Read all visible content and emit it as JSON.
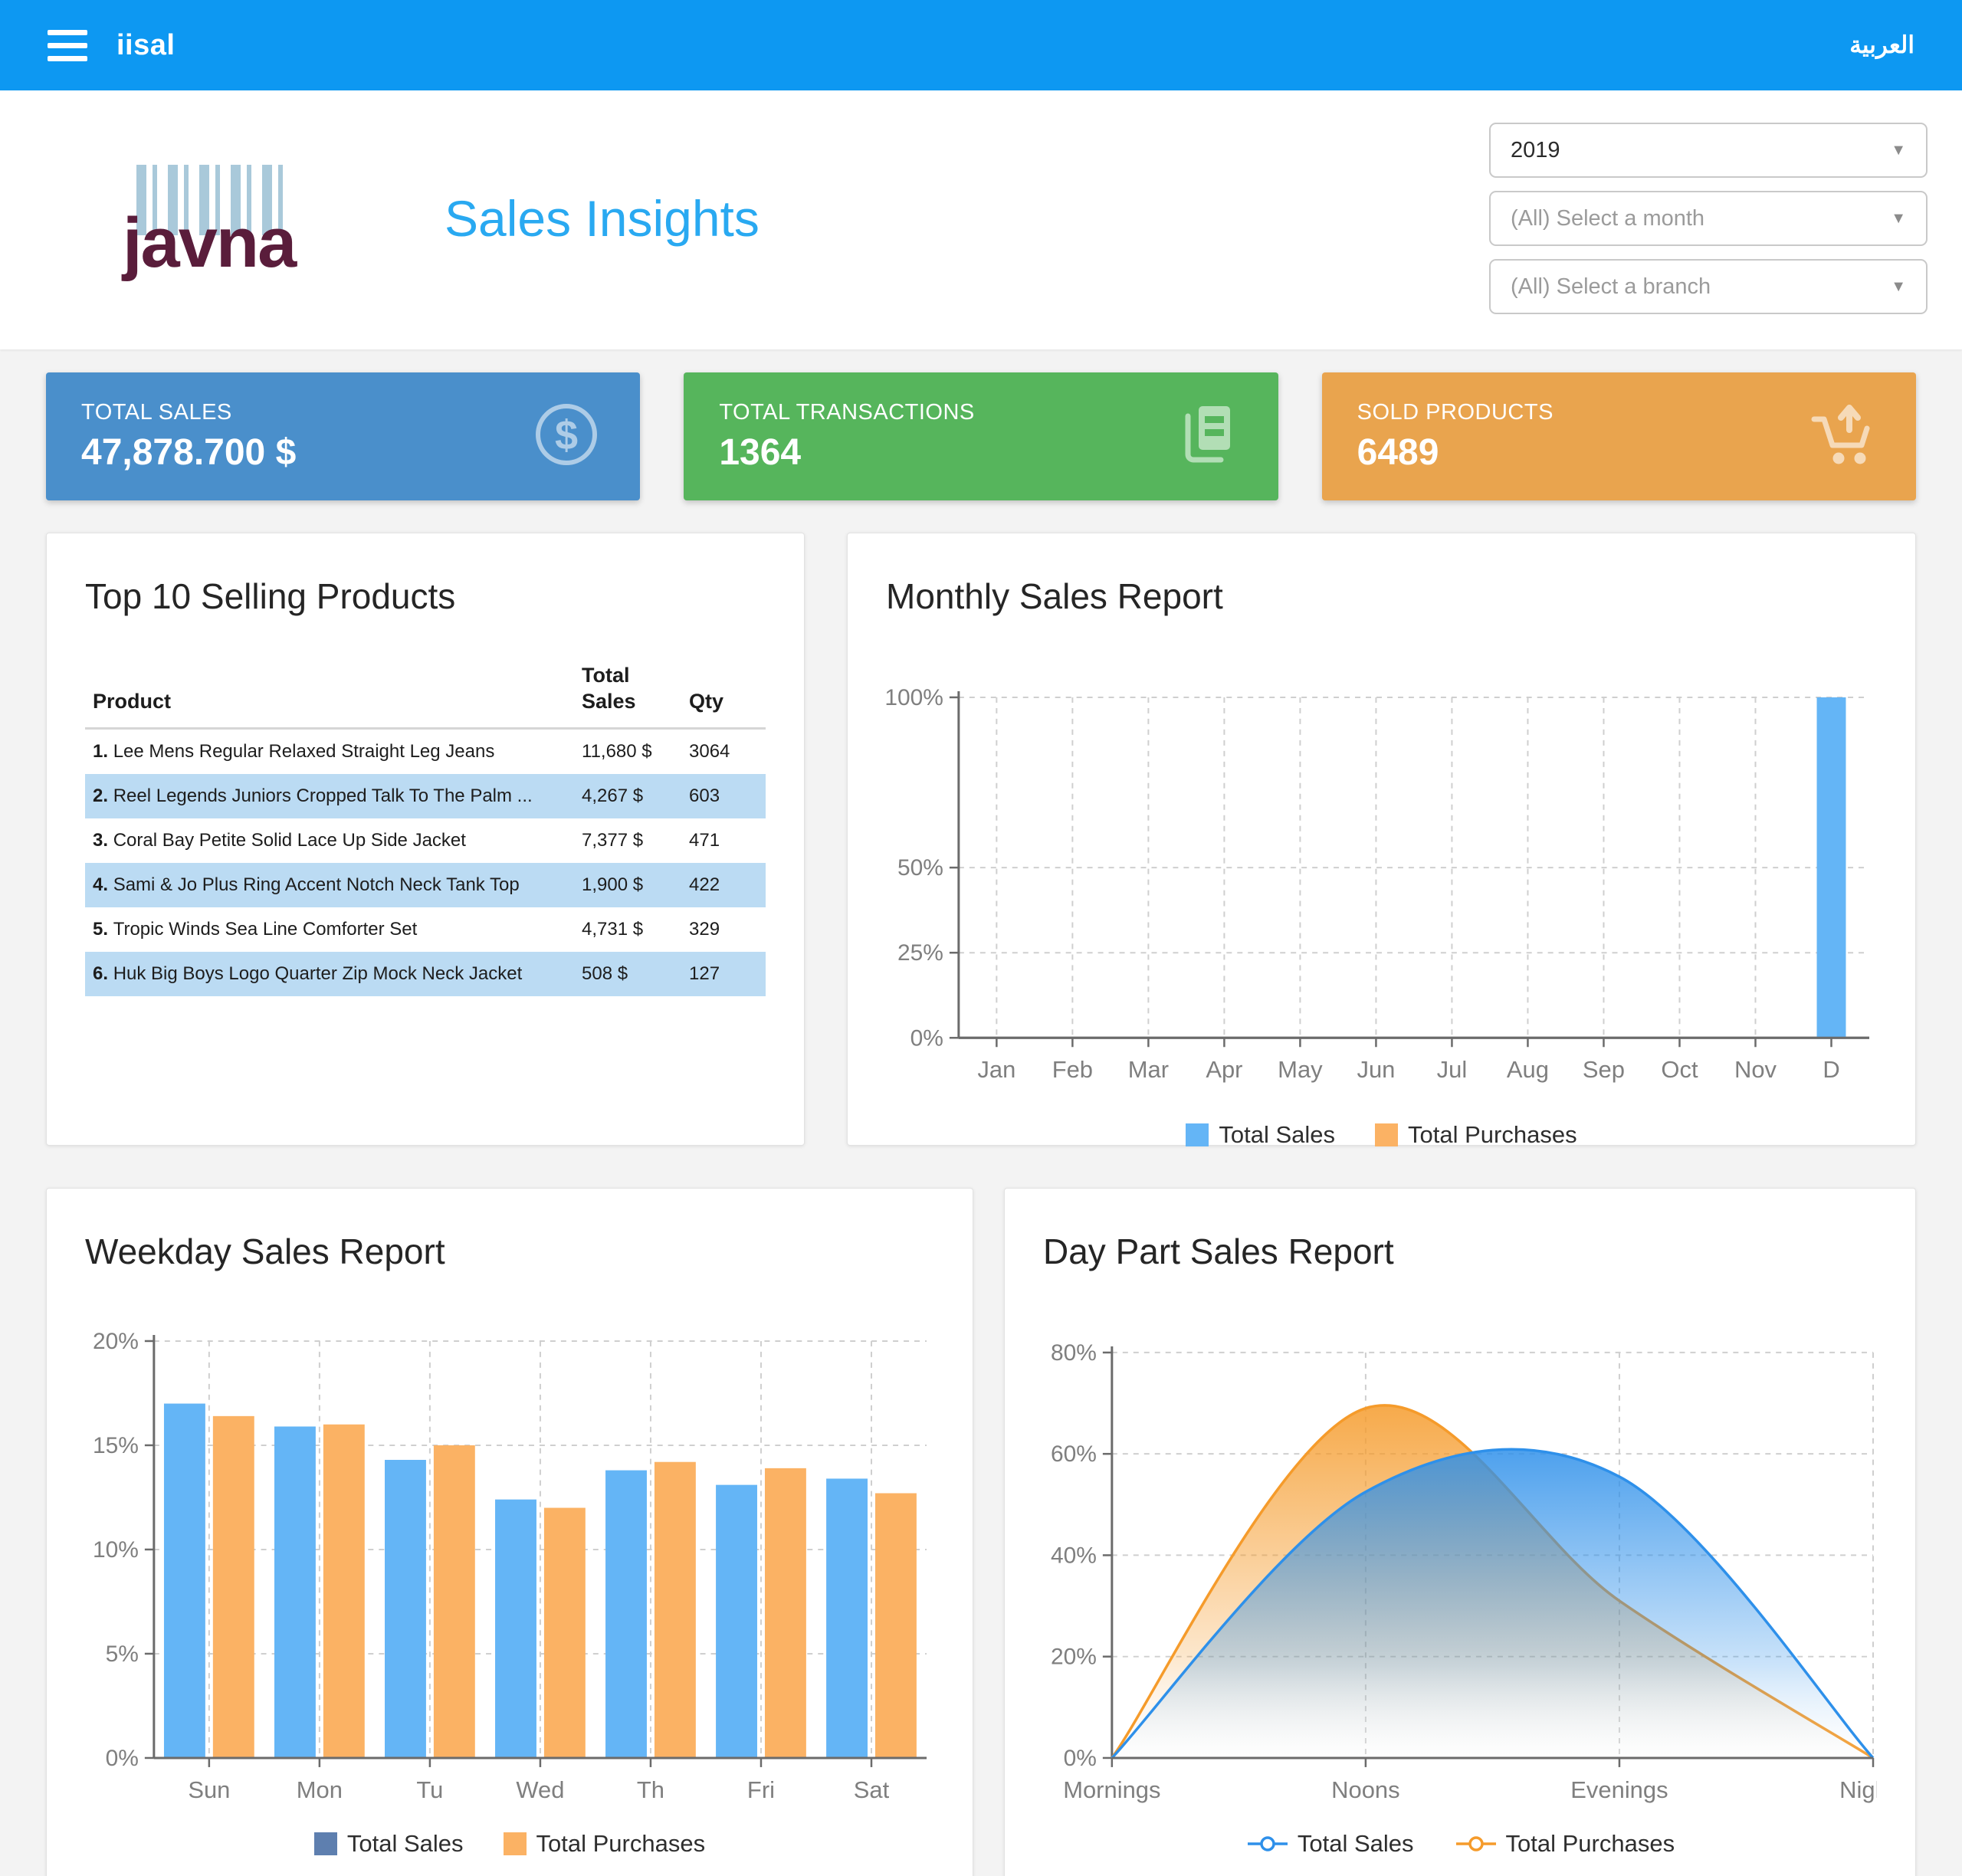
{
  "topbar": {
    "brand": "iisal",
    "language_label": "العربية",
    "accent_color": "#0d98f2"
  },
  "header": {
    "logo_text": "javna",
    "title": "Sales Insights",
    "filters": {
      "year": {
        "value": "2019"
      },
      "month": {
        "placeholder": "(All) Select a month"
      },
      "branch": {
        "placeholder": "(All) Select a branch"
      }
    }
  },
  "kpis": [
    {
      "label": "TOTAL SALES",
      "value": "47,878.700 $",
      "color": "#4a8fcb",
      "icon": "dollar-coin-icon"
    },
    {
      "label": "TOTAL TRANSACTIONS",
      "value": "1364",
      "color": "#56b55c",
      "icon": "receipts-icon"
    },
    {
      "label": "SOLD PRODUCTS",
      "value": "6489",
      "color": "#e9a44e",
      "icon": "cart-up-arrow-icon"
    }
  ],
  "top_products": {
    "title": "Top 10 Selling Products",
    "columns": [
      "Product",
      "Total Sales",
      "Qty"
    ],
    "stripe_color": "#bbdbf3",
    "rows": [
      {
        "rank": "1.",
        "name": "Lee Mens Regular Relaxed Straight Leg Jeans",
        "total_sales": "11,680 $",
        "qty": "3064"
      },
      {
        "rank": "2.",
        "name": "Reel Legends Juniors Cropped Talk To The Palm ...",
        "total_sales": "4,267 $",
        "qty": "603"
      },
      {
        "rank": "3.",
        "name": "Coral Bay Petite Solid Lace Up Side Jacket",
        "total_sales": "7,377 $",
        "qty": "471"
      },
      {
        "rank": "4.",
        "name": "Sami & Jo Plus Ring Accent Notch Neck Tank Top",
        "total_sales": "1,900 $",
        "qty": "422"
      },
      {
        "rank": "5.",
        "name": "Tropic Winds Sea Line Comforter Set",
        "total_sales": "4,731 $",
        "qty": "329"
      },
      {
        "rank": "6.",
        "name": "Huk Big Boys Logo Quarter Zip Mock Neck Jacket",
        "total_sales": "508 $",
        "qty": "127"
      }
    ]
  },
  "chart_data": [
    {
      "id": "monthly",
      "type": "bar",
      "title": "Monthly Sales Report",
      "categories": [
        "Jan",
        "Feb",
        "Mar",
        "Apr",
        "May",
        "Jun",
        "Jul",
        "Aug",
        "Sep",
        "Oct",
        "Nov",
        "D"
      ],
      "series": [
        {
          "name": "Total Sales",
          "color": "#64b5f6",
          "values": [
            0,
            0,
            0,
            0,
            0,
            0,
            0,
            0,
            0,
            0,
            0,
            100
          ]
        },
        {
          "name": "Total Purchases",
          "color": "#fbb264",
          "values": [
            0,
            0,
            0,
            0,
            0,
            0,
            0,
            0,
            0,
            0,
            0,
            0
          ]
        }
      ],
      "ylim": [
        0,
        100
      ],
      "yticks": [
        0,
        25,
        50,
        100
      ],
      "ytick_suffix": "%",
      "grid": true,
      "legend_position": "bottom"
    },
    {
      "id": "weekday",
      "type": "bar",
      "title": "Weekday Sales Report",
      "categories": [
        "Sun",
        "Mon",
        "Tu",
        "Wed",
        "Th",
        "Fri",
        "Sat"
      ],
      "series": [
        {
          "name": "Total Sales",
          "color": "#64b5f6",
          "legend_color": "#5e7faf",
          "values": [
            17.0,
            15.9,
            14.3,
            12.4,
            13.8,
            13.1,
            13.4
          ]
        },
        {
          "name": "Total Purchases",
          "color": "#fbb264",
          "values": [
            16.4,
            16.0,
            15.0,
            12.0,
            14.2,
            13.9,
            12.7
          ]
        }
      ],
      "ylim": [
        0,
        20
      ],
      "yticks": [
        0,
        5,
        10,
        15,
        20
      ],
      "ytick_suffix": "%",
      "grid": true,
      "legend_position": "bottom"
    },
    {
      "id": "daypart",
      "type": "area",
      "title": "Day Part Sales Report",
      "categories": [
        "Mornings",
        "Noons",
        "Evenings",
        "Nights"
      ],
      "series": [
        {
          "name": "Total Sales",
          "color": "#2e90ea",
          "values": [
            0,
            52.5,
            55.5,
            0
          ]
        },
        {
          "name": "Total Purchases",
          "color": "#f59b2b",
          "values": [
            0,
            69,
            31,
            0
          ]
        }
      ],
      "ylim": [
        0,
        80
      ],
      "yticks": [
        0,
        20,
        40,
        60,
        80
      ],
      "ytick_suffix": "%",
      "grid": true,
      "legend_position": "bottom",
      "marker": "line-circle"
    }
  ]
}
